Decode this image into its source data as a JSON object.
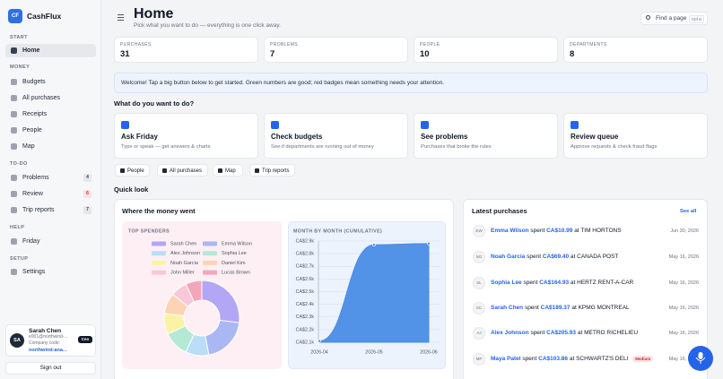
{
  "app": {
    "logo": "CF",
    "name": "CashFlux"
  },
  "nav": [
    {
      "section": "START",
      "items": [
        {
          "label": "Home"
        }
      ]
    },
    {
      "section": "MONEY",
      "items": [
        {
          "label": "Budgets"
        },
        {
          "label": "All purchases"
        },
        {
          "label": "Receipts"
        },
        {
          "label": "People"
        },
        {
          "label": "Map"
        }
      ]
    },
    {
      "section": "TO-DO",
      "items": [
        {
          "label": "Problems",
          "count": 4
        },
        {
          "label": "Review",
          "count": 6
        },
        {
          "label": "Trip reports",
          "count": 7
        }
      ]
    },
    {
      "section": "HELP",
      "items": [
        {
          "label": "Friday"
        }
      ]
    },
    {
      "section": "SETUP",
      "items": [
        {
          "label": "Settings"
        }
      ]
    }
  ],
  "user": {
    "initials": "SA",
    "name": "Sarah Chen",
    "email": "e001@northwind-...",
    "role": "Ceo",
    "company_label": "Company code:",
    "company_code": "northwind-ana..."
  },
  "sign_out": "Sign out",
  "header": {
    "title": "Home",
    "subtitle": "Pick what you want to do — everything is one click away.",
    "search": "Find a page",
    "shortcut": "Ctrl K"
  },
  "stats": [
    {
      "label": "PURCHASES",
      "value": 31
    },
    {
      "label": "PROBLEMS",
      "value": 7
    },
    {
      "label": "PEOPLE",
      "value": 10
    },
    {
      "label": "DEPARTMENTS",
      "value": 8
    }
  ],
  "banner": "Welcome! Tap a big button below to get started. Green numbers are good; red badges mean something needs your attention.",
  "actions_title": "What do you want to do?",
  "actions": [
    {
      "title": "Ask Friday",
      "description": "Type or speak — get answers & charts"
    },
    {
      "title": "Check budgets",
      "description": "See if departments are running out of money"
    },
    {
      "title": "See problems",
      "description": "Purchases that broke the rules"
    },
    {
      "title": "Review queue",
      "description": "Approve requests & check fraud flags"
    }
  ],
  "shortcuts": [
    "People",
    "All purchases",
    "Map",
    "Trip reports"
  ],
  "quick_look": "Quick look",
  "money_card": {
    "title": "Where the money went"
  },
  "purchases": {
    "title": "Latest purchases",
    "see_all": "See all",
    "verb": "spent",
    "prep": "at",
    "items": [
      {
        "initials": "EW",
        "name": "Emma Wilson",
        "amount": "CA$10.99",
        "merchant": "TIM HORTONS",
        "date": "Jun 30, 2026"
      },
      {
        "initials": "NG",
        "name": "Noah Garcia",
        "amount": "CA$69.40",
        "merchant": "CANADA POST",
        "date": "May 16, 2026"
      },
      {
        "initials": "SL",
        "name": "Sophia Lee",
        "amount": "CA$164.93",
        "merchant": "HERTZ RENT-A-CAR",
        "date": "May 16, 2026"
      },
      {
        "initials": "SC",
        "name": "Sarah Chen",
        "amount": "CA$189.37",
        "merchant": "KPMG MONTREAL",
        "date": "May 16, 2026"
      },
      {
        "initials": "AJ",
        "name": "Alex Johnson",
        "amount": "CA$205.93",
        "merchant": "METRO RICHELIEU",
        "date": "May 16, 2026"
      },
      {
        "initials": "MP",
        "name": "Maya Patel",
        "amount": "CA$103.86",
        "merchant": "SCHWARTZ'S DELI",
        "badge": "Medium",
        "date": "May 16, 2026"
      }
    ]
  },
  "chart_data": [
    {
      "type": "pie",
      "title": "TOP SPENDERS",
      "categories": [
        "Sarah Chen",
        "Emma Wilson",
        "Alex Johnson",
        "Sophia Lee",
        "Noah Garcia",
        "Daniel Kim",
        "John Miller",
        "Lucas Brown"
      ],
      "values": [
        27,
        20,
        10,
        11,
        9,
        9,
        7,
        7
      ],
      "colors": [
        "#b3a6f4",
        "#a9b7f4",
        "#b9def6",
        "#b4e9d6",
        "#fcf2a6",
        "#fcd4b4",
        "#f8c8d9",
        "#f3a6ba"
      ]
    },
    {
      "type": "area",
      "title": "MONTH BY MONTH (CUMULATIVE)",
      "categories": [
        "2026-04",
        "2026-05",
        "2026-06"
      ],
      "values": [
        2110,
        2870,
        2880
      ],
      "color": "#4a8de6",
      "ylim": [
        2100,
        2900
      ],
      "yticks": [
        {
          "value": 2100,
          "label": "CA$2.1k"
        },
        {
          "value": 2200,
          "label": "CA$2.2k"
        },
        {
          "value": 2300,
          "label": "CA$2.3k"
        },
        {
          "value": 2400,
          "label": "CA$2.4k"
        },
        {
          "value": 2500,
          "label": "CA$2.5k"
        },
        {
          "value": 2600,
          "label": "CA$2.6k"
        },
        {
          "value": 2700,
          "label": "CA$2.7k"
        },
        {
          "value": 2800,
          "label": "CA$2.8k"
        },
        {
          "value": 2900,
          "label": "CA$2.9k"
        }
      ],
      "grid": true
    }
  ]
}
